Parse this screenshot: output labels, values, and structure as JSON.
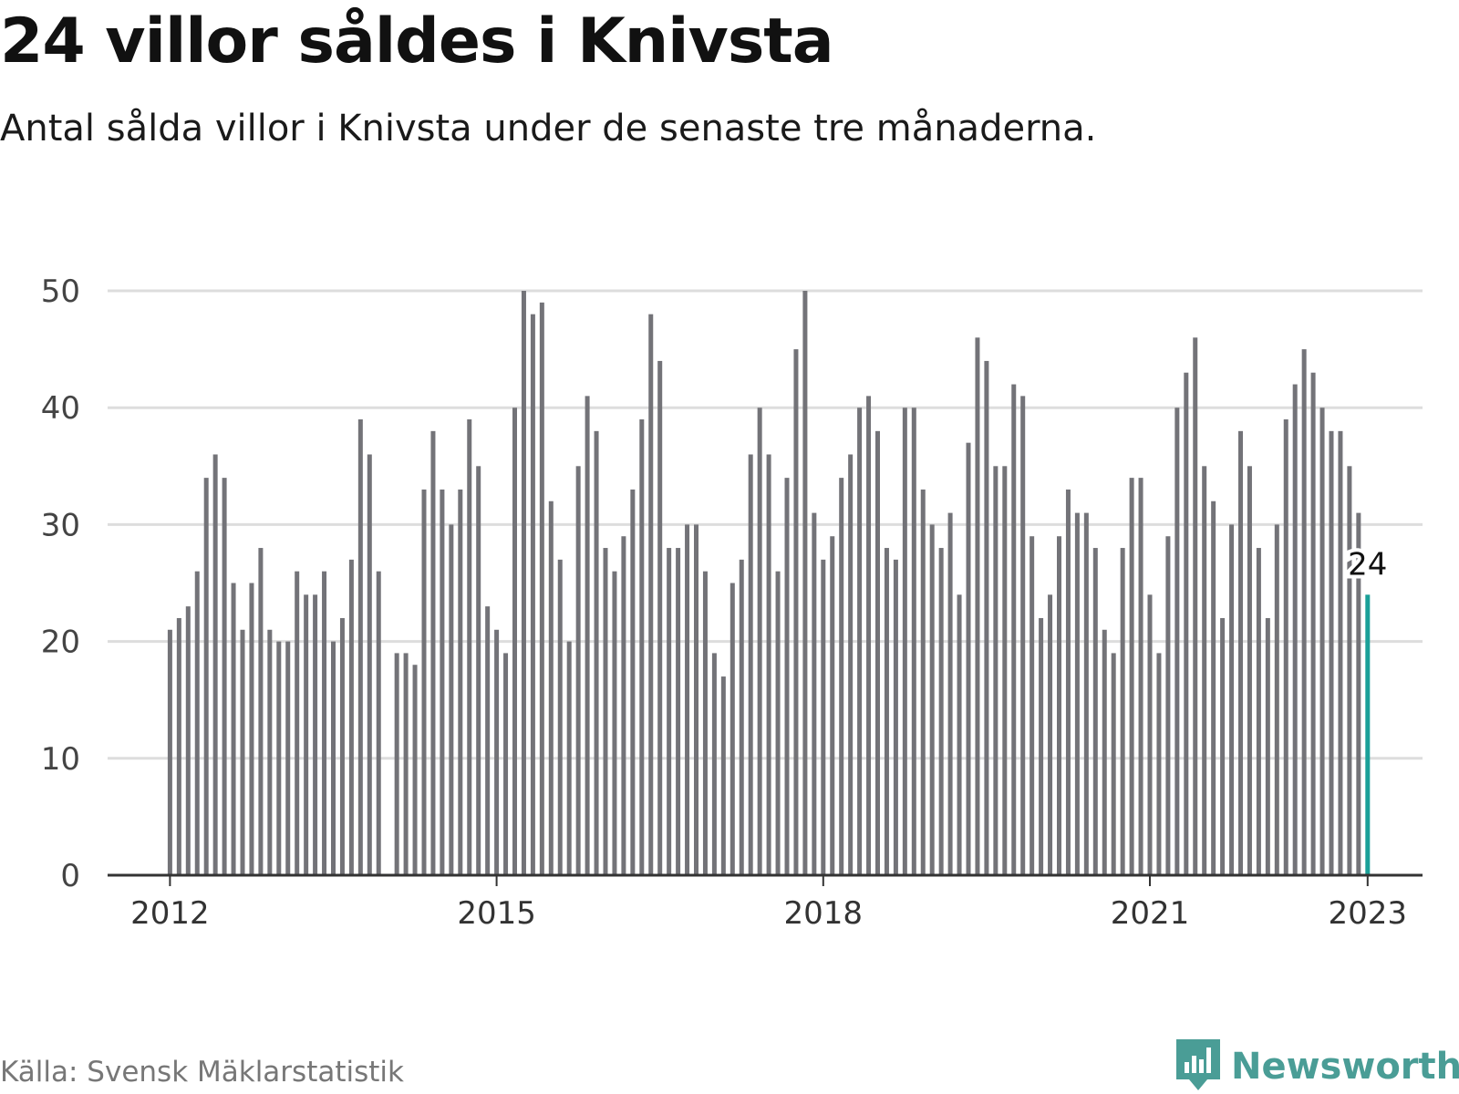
{
  "title": "24 villor såldes i Knivsta",
  "subtitle": "Antal sålda villor i Knivsta under de senaste tre månaderna.",
  "source": "Källa: Svensk Mäklarstatistik",
  "brand": "Newsworthy",
  "colors": {
    "bar": "#737378",
    "highlight": "#1aa098",
    "grid": "#dddddd",
    "axis": "#333333",
    "brand": "#4a9d96"
  },
  "chart_data": {
    "type": "bar",
    "x_start": "2012-01",
    "x_ticks": [
      "2012",
      "2015",
      "2018",
      "2021",
      "2023"
    ],
    "y_ticks": [
      0,
      10,
      20,
      30,
      40,
      50
    ],
    "ylim": [
      0,
      50
    ],
    "grid": true,
    "highlight_label": "24",
    "values": [
      21,
      22,
      23,
      26,
      34,
      36,
      34,
      25,
      21,
      25,
      28,
      21,
      20,
      20,
      26,
      24,
      24,
      26,
      20,
      22,
      27,
      39,
      36,
      26,
      null,
      19,
      19,
      18,
      33,
      38,
      33,
      30,
      33,
      39,
      35,
      23,
      21,
      19,
      40,
      50,
      48,
      49,
      32,
      27,
      20,
      35,
      41,
      38,
      28,
      26,
      29,
      33,
      39,
      48,
      44,
      28,
      28,
      30,
      30,
      26,
      19,
      17,
      25,
      27,
      36,
      40,
      36,
      26,
      34,
      45,
      50,
      31,
      27,
      29,
      34,
      36,
      40,
      41,
      38,
      28,
      27,
      40,
      40,
      33,
      30,
      28,
      31,
      24,
      37,
      46,
      44,
      35,
      35,
      42,
      41,
      29,
      22,
      24,
      29,
      33,
      31,
      31,
      28,
      21,
      19,
      28,
      34,
      34,
      24,
      19,
      29,
      40,
      43,
      46,
      35,
      32,
      22,
      30,
      38,
      35,
      28,
      22,
      30,
      39,
      42,
      45,
      43,
      40,
      38,
      38,
      35,
      31,
      24
    ]
  }
}
